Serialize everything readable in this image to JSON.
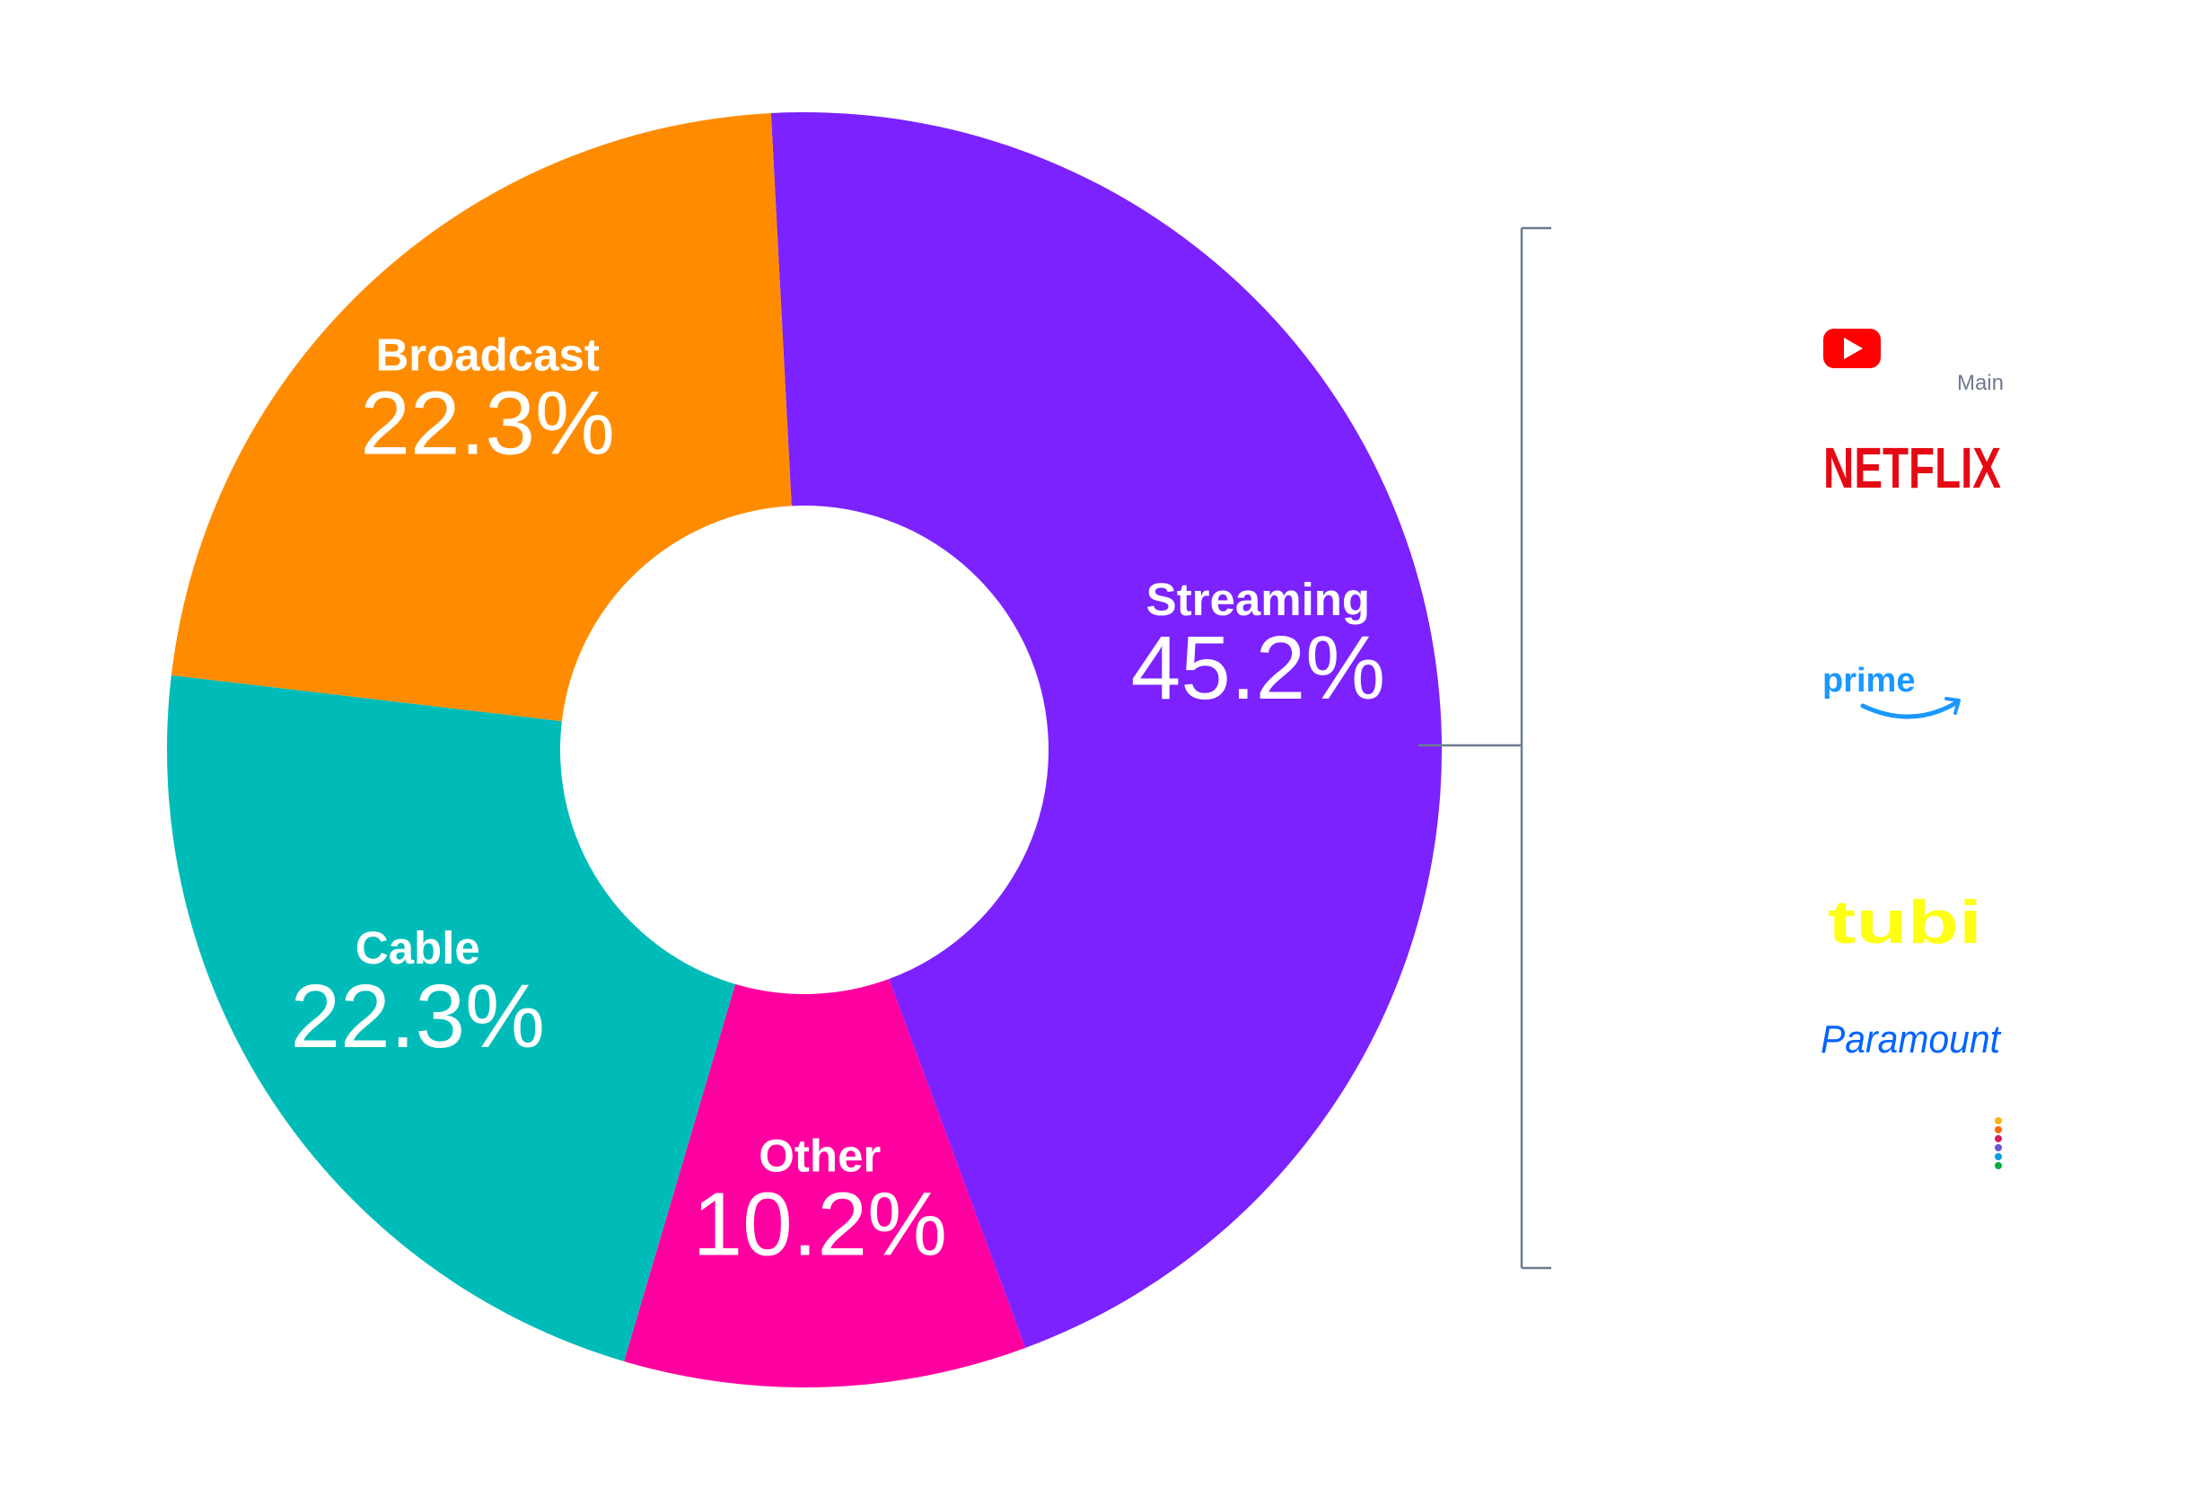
{
  "chart_data": {
    "type": "pie",
    "variant": "donut",
    "start_angle_deg": -3,
    "direction": "clockwise",
    "legend": "none",
    "value_suffix": "%",
    "slices": [
      {
        "label": "Streaming",
        "value": 45.2,
        "display": "45.2%",
        "color": "#7b22ff"
      },
      {
        "label": "Other",
        "value": 10.2,
        "display": "10.2%",
        "color": "#ff00a0"
      },
      {
        "label": "Cable",
        "value": 22.3,
        "display": "22.3%",
        "color": "#00bcb8"
      },
      {
        "label": "Broadcast",
        "value": 22.3,
        "display": "22.3%",
        "color": "#ff8c00"
      }
    ]
  },
  "streaming_breakdown": {
    "bracket_color": "#6e7a8e",
    "note": "Main",
    "logos": [
      {
        "name": "YouTube",
        "icon": "youtube-logo",
        "color": "#ff0000"
      },
      {
        "name": "NETFLIX",
        "icon": "netflix-logo",
        "color": "#e50914"
      },
      {
        "name": "prime",
        "icon": "prime-video-logo",
        "color": "#1a98ff"
      },
      {
        "name": "tubi",
        "icon": "tubi-logo",
        "color": "#ffff13"
      },
      {
        "name": "Paramount",
        "icon": "paramount-logo",
        "color": "#0064ff"
      },
      {
        "name": "Peacock",
        "icon": "peacock-logo",
        "color": "#000000"
      }
    ]
  }
}
